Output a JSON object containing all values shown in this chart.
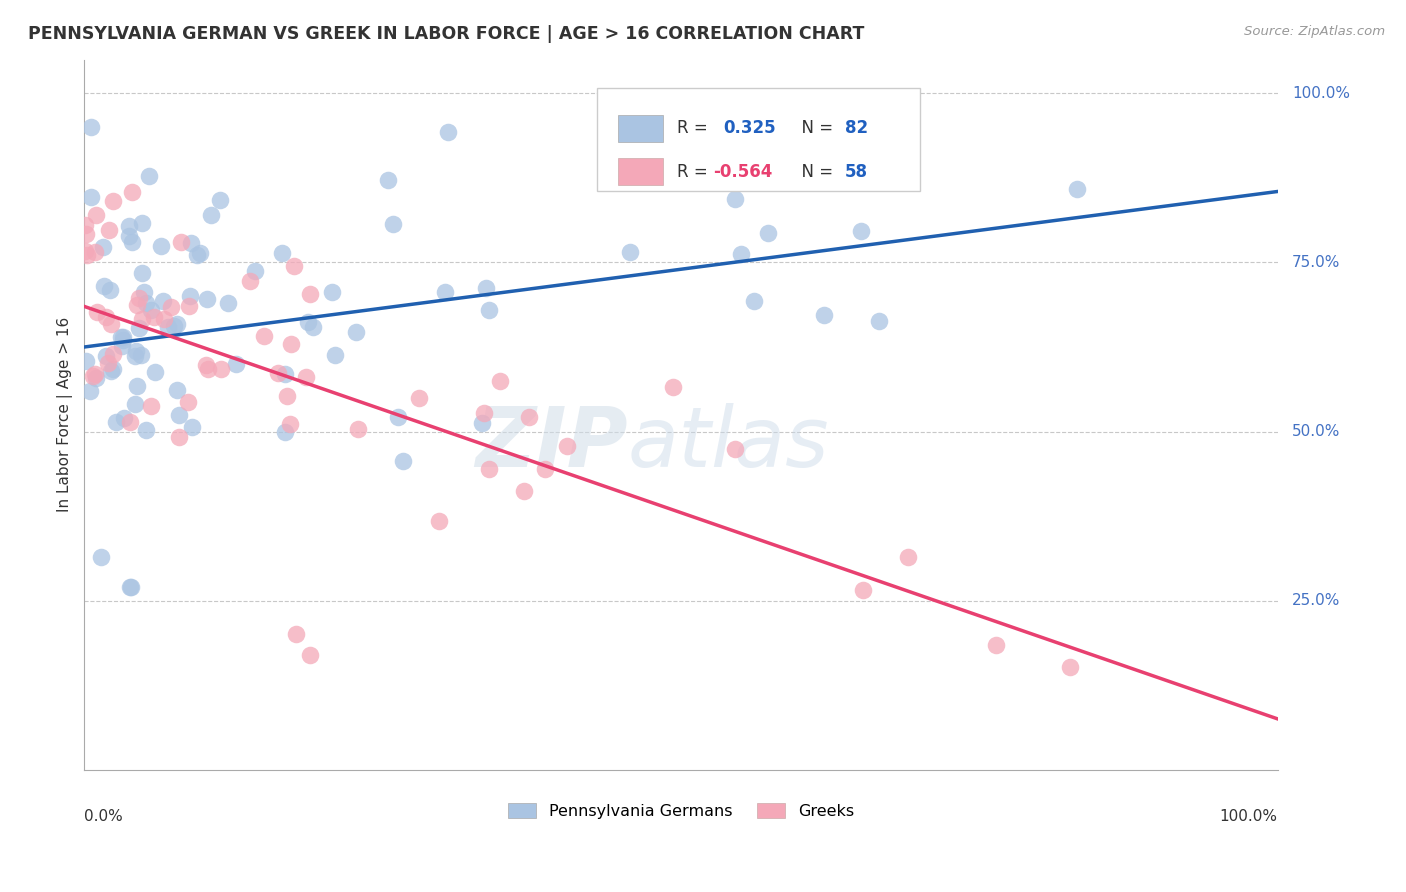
{
  "title": "PENNSYLVANIA GERMAN VS GREEK IN LABOR FORCE | AGE > 16 CORRELATION CHART",
  "source_text": "Source: ZipAtlas.com",
  "ylabel": "In Labor Force | Age > 16",
  "R_blue": 0.325,
  "N_blue": 82,
  "R_pink": -0.564,
  "N_pink": 58,
  "blue_color": "#aac4e2",
  "pink_color": "#f4a8b8",
  "line_blue": "#2060b0",
  "line_pink": "#e84070",
  "xlim": [
    0.0,
    1.0
  ],
  "ylim": [
    0.0,
    1.05
  ],
  "grid_color": "#c8c8c8",
  "bg_color": "#ffffff",
  "blue_line_y0": 0.625,
  "blue_line_y1": 0.855,
  "pink_line_y0": 0.685,
  "pink_line_y1": 0.075
}
